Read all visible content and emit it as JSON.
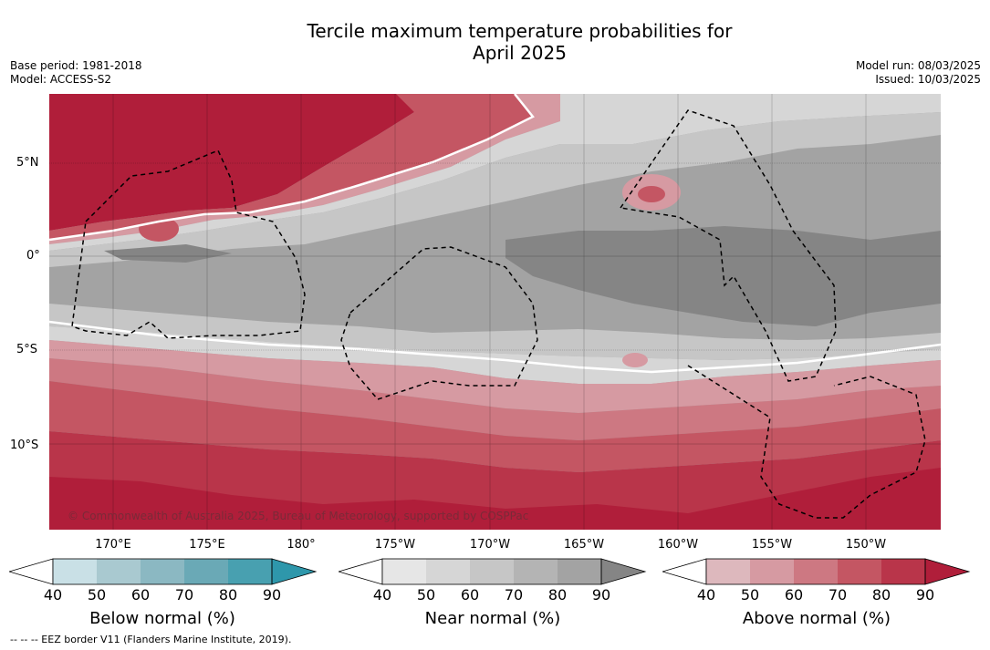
{
  "title_line1": "Tercile maximum temperature probabilities for",
  "title_line2": "April 2025",
  "meta_left": {
    "base_period": "Base period: 1981-2018",
    "model": "Model: ACCESS-S2"
  },
  "meta_right": {
    "model_run": "Model run: 08/03/2025",
    "issued": "Issued: 10/03/2025"
  },
  "lat_labels": [
    "5°N",
    "0°",
    "5°S",
    "10°S"
  ],
  "lon_labels": [
    "170°E",
    "175°E",
    "180°",
    "175°W",
    "170°W",
    "165°W",
    "160°W",
    "155°W",
    "150°W"
  ],
  "copyright": "© Commonwealth of Australia 2025, Bureau of Meteorology, supported by COSPPac",
  "footer": "--  --  -- EEZ border V11 (Flanders Marine Institute, 2019).",
  "colorbars": [
    {
      "title": "Below normal (%)",
      "ticks": [
        "40",
        "50",
        "60",
        "70",
        "80",
        "90"
      ],
      "colors": [
        "#c9e0e6",
        "#a9c9d0",
        "#8bb8c2",
        "#6aa9b6",
        "#48a0b0",
        "#2e97ab"
      ]
    },
    {
      "title": "Near normal (%)",
      "ticks": [
        "40",
        "50",
        "60",
        "70",
        "80",
        "90"
      ],
      "colors": [
        "#e6e6e6",
        "#d6d6d6",
        "#c6c6c6",
        "#b4b4b4",
        "#a3a3a3",
        "#858585"
      ]
    },
    {
      "title": "Above normal (%)",
      "ticks": [
        "40",
        "50",
        "60",
        "70",
        "80",
        "90"
      ],
      "colors": [
        "#ddb8bd",
        "#d69aa2",
        "#cd7882",
        "#c45663",
        "#b9354a",
        "#b01e3a"
      ]
    }
  ],
  "map_colors": {
    "above_90": "#b01e3a",
    "above_80": "#b9354a",
    "above_70": "#c45663",
    "above_60": "#cd7882",
    "above_50": "#d69aa2",
    "near_40": "#d6d6d6",
    "near_50": "#c6c6c6",
    "near_60": "#a3a3a3",
    "near_70": "#858585"
  }
}
